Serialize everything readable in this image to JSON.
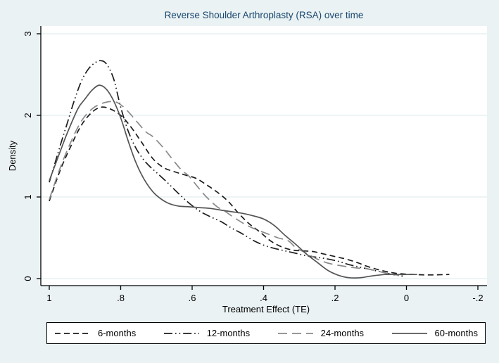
{
  "window": {
    "background_color": "#eaf2f3"
  },
  "chart_data": {
    "type": "line",
    "title": "Reverse Shoulder Arthroplasty (RSA) over time",
    "title_color": "#1a476f",
    "xlabel": "Treatment Effect (TE)",
    "ylabel": "Density",
    "x_axis_reversed": true,
    "xlim": [
      1.02,
      -0.23
    ],
    "ylim": [
      -0.09,
      3.1
    ],
    "xtick_values": [
      1,
      0.8,
      0.6,
      0.4,
      0.2,
      0,
      -0.2
    ],
    "xtick_labels": [
      "1",
      ".8",
      ".6",
      ".4",
      ".2",
      "0",
      "-.2"
    ],
    "ytick_values": [
      0,
      1,
      2,
      3
    ],
    "ytick_labels": [
      "0",
      "1",
      "2",
      "3"
    ],
    "grid": "horizontal",
    "gridline_color": "#e2edef",
    "plot_background": "#ffffff",
    "axis_color": "#000000",
    "legend_position": "bottom-box",
    "series": [
      {
        "name": "6-months",
        "color": "#1c1c1c",
        "style": "dashed",
        "points": [
          [
            1.0,
            0.95
          ],
          [
            0.97,
            1.32
          ],
          [
            0.94,
            1.62
          ],
          [
            0.91,
            1.88
          ],
          [
            0.88,
            2.04
          ],
          [
            0.855,
            2.1
          ],
          [
            0.83,
            2.08
          ],
          [
            0.8,
            2.0
          ],
          [
            0.77,
            1.85
          ],
          [
            0.74,
            1.66
          ],
          [
            0.71,
            1.47
          ],
          [
            0.68,
            1.36
          ],
          [
            0.65,
            1.31
          ],
          [
            0.62,
            1.27
          ],
          [
            0.59,
            1.23
          ],
          [
            0.56,
            1.15
          ],
          [
            0.53,
            1.06
          ],
          [
            0.5,
            0.95
          ],
          [
            0.47,
            0.8
          ],
          [
            0.44,
            0.67
          ],
          [
            0.41,
            0.57
          ],
          [
            0.38,
            0.46
          ],
          [
            0.35,
            0.39
          ],
          [
            0.32,
            0.35
          ],
          [
            0.29,
            0.34
          ],
          [
            0.26,
            0.33
          ],
          [
            0.23,
            0.3
          ],
          [
            0.2,
            0.27
          ],
          [
            0.17,
            0.24
          ],
          [
            0.14,
            0.2
          ],
          [
            0.11,
            0.15
          ],
          [
            0.08,
            0.11
          ],
          [
            0.05,
            0.08
          ],
          [
            0.02,
            0.06
          ],
          [
            -0.02,
            0.05
          ],
          [
            -0.06,
            0.045
          ],
          [
            -0.12,
            0.05
          ]
        ]
      },
      {
        "name": "12-months",
        "color": "#1c1c1c",
        "style": "dash-dot-dot",
        "points": [
          [
            1.0,
            1.18
          ],
          [
            0.97,
            1.62
          ],
          [
            0.95,
            1.9
          ],
          [
            0.93,
            2.18
          ],
          [
            0.91,
            2.42
          ],
          [
            0.89,
            2.57
          ],
          [
            0.87,
            2.65
          ],
          [
            0.855,
            2.67
          ],
          [
            0.84,
            2.63
          ],
          [
            0.82,
            2.45
          ],
          [
            0.8,
            2.1
          ],
          [
            0.78,
            1.82
          ],
          [
            0.76,
            1.62
          ],
          [
            0.74,
            1.48
          ],
          [
            0.72,
            1.38
          ],
          [
            0.7,
            1.3
          ],
          [
            0.67,
            1.18
          ],
          [
            0.64,
            1.05
          ],
          [
            0.61,
            0.93
          ],
          [
            0.58,
            0.83
          ],
          [
            0.55,
            0.76
          ],
          [
            0.52,
            0.7
          ],
          [
            0.49,
            0.62
          ],
          [
            0.46,
            0.55
          ],
          [
            0.43,
            0.47
          ],
          [
            0.4,
            0.41
          ],
          [
            0.37,
            0.37
          ],
          [
            0.34,
            0.34
          ],
          [
            0.31,
            0.31
          ],
          [
            0.28,
            0.28
          ],
          [
            0.25,
            0.26
          ],
          [
            0.22,
            0.24
          ],
          [
            0.19,
            0.21
          ],
          [
            0.16,
            0.17
          ],
          [
            0.13,
            0.14
          ],
          [
            0.1,
            0.11
          ],
          [
            0.07,
            0.08
          ],
          [
            0.04,
            0.05
          ],
          [
            0.01,
            0.03
          ]
        ]
      },
      {
        "name": "24-months",
        "color": "#8a8a8a",
        "style": "long-dash",
        "points": [
          [
            1.0,
            0.97
          ],
          [
            0.97,
            1.35
          ],
          [
            0.94,
            1.67
          ],
          [
            0.91,
            1.93
          ],
          [
            0.88,
            2.08
          ],
          [
            0.85,
            2.15
          ],
          [
            0.82,
            2.17
          ],
          [
            0.8,
            2.13
          ],
          [
            0.78,
            2.05
          ],
          [
            0.76,
            1.95
          ],
          [
            0.73,
            1.8
          ],
          [
            0.71,
            1.74
          ],
          [
            0.68,
            1.6
          ],
          [
            0.66,
            1.49
          ],
          [
            0.63,
            1.33
          ],
          [
            0.61,
            1.26
          ],
          [
            0.58,
            1.1
          ],
          [
            0.56,
            1.0
          ],
          [
            0.53,
            0.88
          ],
          [
            0.51,
            0.83
          ],
          [
            0.48,
            0.74
          ],
          [
            0.45,
            0.66
          ],
          [
            0.42,
            0.6
          ],
          [
            0.39,
            0.55
          ],
          [
            0.36,
            0.5
          ],
          [
            0.33,
            0.46
          ],
          [
            0.31,
            0.38
          ],
          [
            0.28,
            0.31
          ],
          [
            0.25,
            0.24
          ],
          [
            0.22,
            0.19
          ],
          [
            0.18,
            0.155
          ],
          [
            0.14,
            0.13
          ],
          [
            0.11,
            0.12
          ],
          [
            0.08,
            0.09
          ],
          [
            0.05,
            0.06
          ],
          [
            0.02,
            0.04
          ]
        ]
      },
      {
        "name": "60-months",
        "color": "#555555",
        "style": "solid",
        "points": [
          [
            1.0,
            1.2
          ],
          [
            0.97,
            1.55
          ],
          [
            0.95,
            1.78
          ],
          [
            0.92,
            2.08
          ],
          [
            0.9,
            2.2
          ],
          [
            0.88,
            2.31
          ],
          [
            0.86,
            2.37
          ],
          [
            0.84,
            2.32
          ],
          [
            0.82,
            2.18
          ],
          [
            0.8,
            1.97
          ],
          [
            0.78,
            1.7
          ],
          [
            0.76,
            1.45
          ],
          [
            0.74,
            1.26
          ],
          [
            0.72,
            1.12
          ],
          [
            0.7,
            1.02
          ],
          [
            0.67,
            0.93
          ],
          [
            0.64,
            0.89
          ],
          [
            0.61,
            0.88
          ],
          [
            0.58,
            0.87
          ],
          [
            0.55,
            0.86
          ],
          [
            0.52,
            0.84
          ],
          [
            0.49,
            0.82
          ],
          [
            0.46,
            0.8
          ],
          [
            0.43,
            0.77
          ],
          [
            0.4,
            0.73
          ],
          [
            0.37,
            0.65
          ],
          [
            0.34,
            0.53
          ],
          [
            0.31,
            0.42
          ],
          [
            0.28,
            0.3
          ],
          [
            0.25,
            0.2
          ],
          [
            0.22,
            0.1
          ],
          [
            0.19,
            0.04
          ],
          [
            0.16,
            0.01
          ],
          [
            0.13,
            0.01
          ],
          [
            0.1,
            0.03
          ],
          [
            0.06,
            0.05
          ],
          [
            0.02,
            0.05
          ],
          [
            -0.03,
            0.05
          ]
        ]
      }
    ]
  }
}
